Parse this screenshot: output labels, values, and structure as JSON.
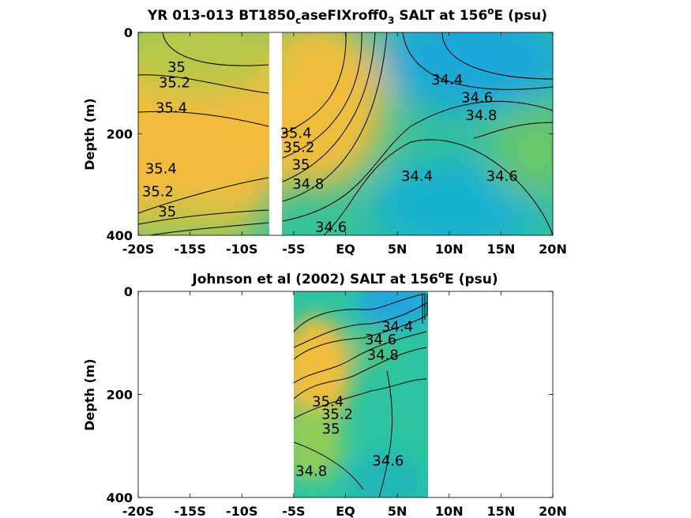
{
  "chart_data": [
    {
      "type": "heatmap",
      "title": "YR 013-013 BT1850",
      "title_sub": "c",
      "title_mid": "aseFIXroff0",
      "title_sub2": "3",
      "title_end": " SALT at 156",
      "title_sup": "o",
      "title_tail": "E (psu)",
      "ylabel": "Depth (m)",
      "xlim": [
        -20,
        20
      ],
      "ylim": [
        0,
        400
      ],
      "y_reversed": true,
      "x_tick_values": [
        -20,
        -15,
        -10,
        -5,
        0,
        5,
        10,
        15,
        20
      ],
      "x_tick_labels": [
        "-20S",
        "-15S",
        "-10S",
        "-5S",
        "EQ",
        "5N",
        "10N",
        "15N",
        "20N"
      ],
      "y_tick_values": [
        0,
        200,
        400
      ],
      "y_tick_labels": [
        "0",
        "200",
        "400"
      ],
      "data_gap_lat": [
        -7.5,
        -6.5
      ],
      "contour_labels": [
        {
          "text": "35",
          "lat": -16.3,
          "depth": 70
        },
        {
          "text": "35.2",
          "lat": -16.5,
          "depth": 100
        },
        {
          "text": "35.4",
          "lat": -16.8,
          "depth": 150
        },
        {
          "text": "35.4",
          "lat": -17.8,
          "depth": 270
        },
        {
          "text": "35.2",
          "lat": -18.1,
          "depth": 315
        },
        {
          "text": "35",
          "lat": -17.2,
          "depth": 355
        },
        {
          "text": "35.4",
          "lat": -4.8,
          "depth": 200
        },
        {
          "text": "35.2",
          "lat": -4.5,
          "depth": 228
        },
        {
          "text": "35",
          "lat": -4.3,
          "depth": 262
        },
        {
          "text": "34.8",
          "lat": -3.6,
          "depth": 300
        },
        {
          "text": "34.6",
          "lat": -1.4,
          "depth": 385
        },
        {
          "text": "34.4",
          "lat": 9.8,
          "depth": 95
        },
        {
          "text": "34.6",
          "lat": 12.7,
          "depth": 130
        },
        {
          "text": "34.8",
          "lat": 13.1,
          "depth": 165
        },
        {
          "text": "34.4",
          "lat": 6.9,
          "depth": 285
        },
        {
          "text": "34.6",
          "lat": 15.1,
          "depth": 285
        }
      ]
    },
    {
      "type": "heatmap",
      "title": "Johnson et al (2002) SALT at 156",
      "title_sup": "o",
      "title_tail": "E (psu)",
      "ylabel": "Depth (m)",
      "xlim": [
        -20,
        20
      ],
      "ylim": [
        0,
        400
      ],
      "y_reversed": true,
      "x_tick_values": [
        -20,
        -15,
        -10,
        -5,
        0,
        5,
        10,
        15,
        20
      ],
      "x_tick_labels": [
        "-20S",
        "-15S",
        "-10S",
        "-5S",
        "EQ",
        "5N",
        "10N",
        "15N",
        "20N"
      ],
      "y_tick_values": [
        0,
        200,
        400
      ],
      "y_tick_labels": [
        "0",
        "200",
        "400"
      ],
      "data_lat_range": [
        -5,
        8
      ],
      "contour_labels": [
        {
          "text": "34.4",
          "lat": 5.0,
          "depth": 70
        },
        {
          "text": "34.6",
          "lat": 3.4,
          "depth": 95
        },
        {
          "text": "34.8",
          "lat": 3.6,
          "depth": 125
        },
        {
          "text": "35.4",
          "lat": -1.7,
          "depth": 215
        },
        {
          "text": "35.2",
          "lat": -0.8,
          "depth": 240
        },
        {
          "text": "35",
          "lat": -1.4,
          "depth": 268
        },
        {
          "text": "34.6",
          "lat": 4.1,
          "depth": 330
        },
        {
          "text": "34.8",
          "lat": -3.3,
          "depth": 350
        }
      ]
    }
  ]
}
